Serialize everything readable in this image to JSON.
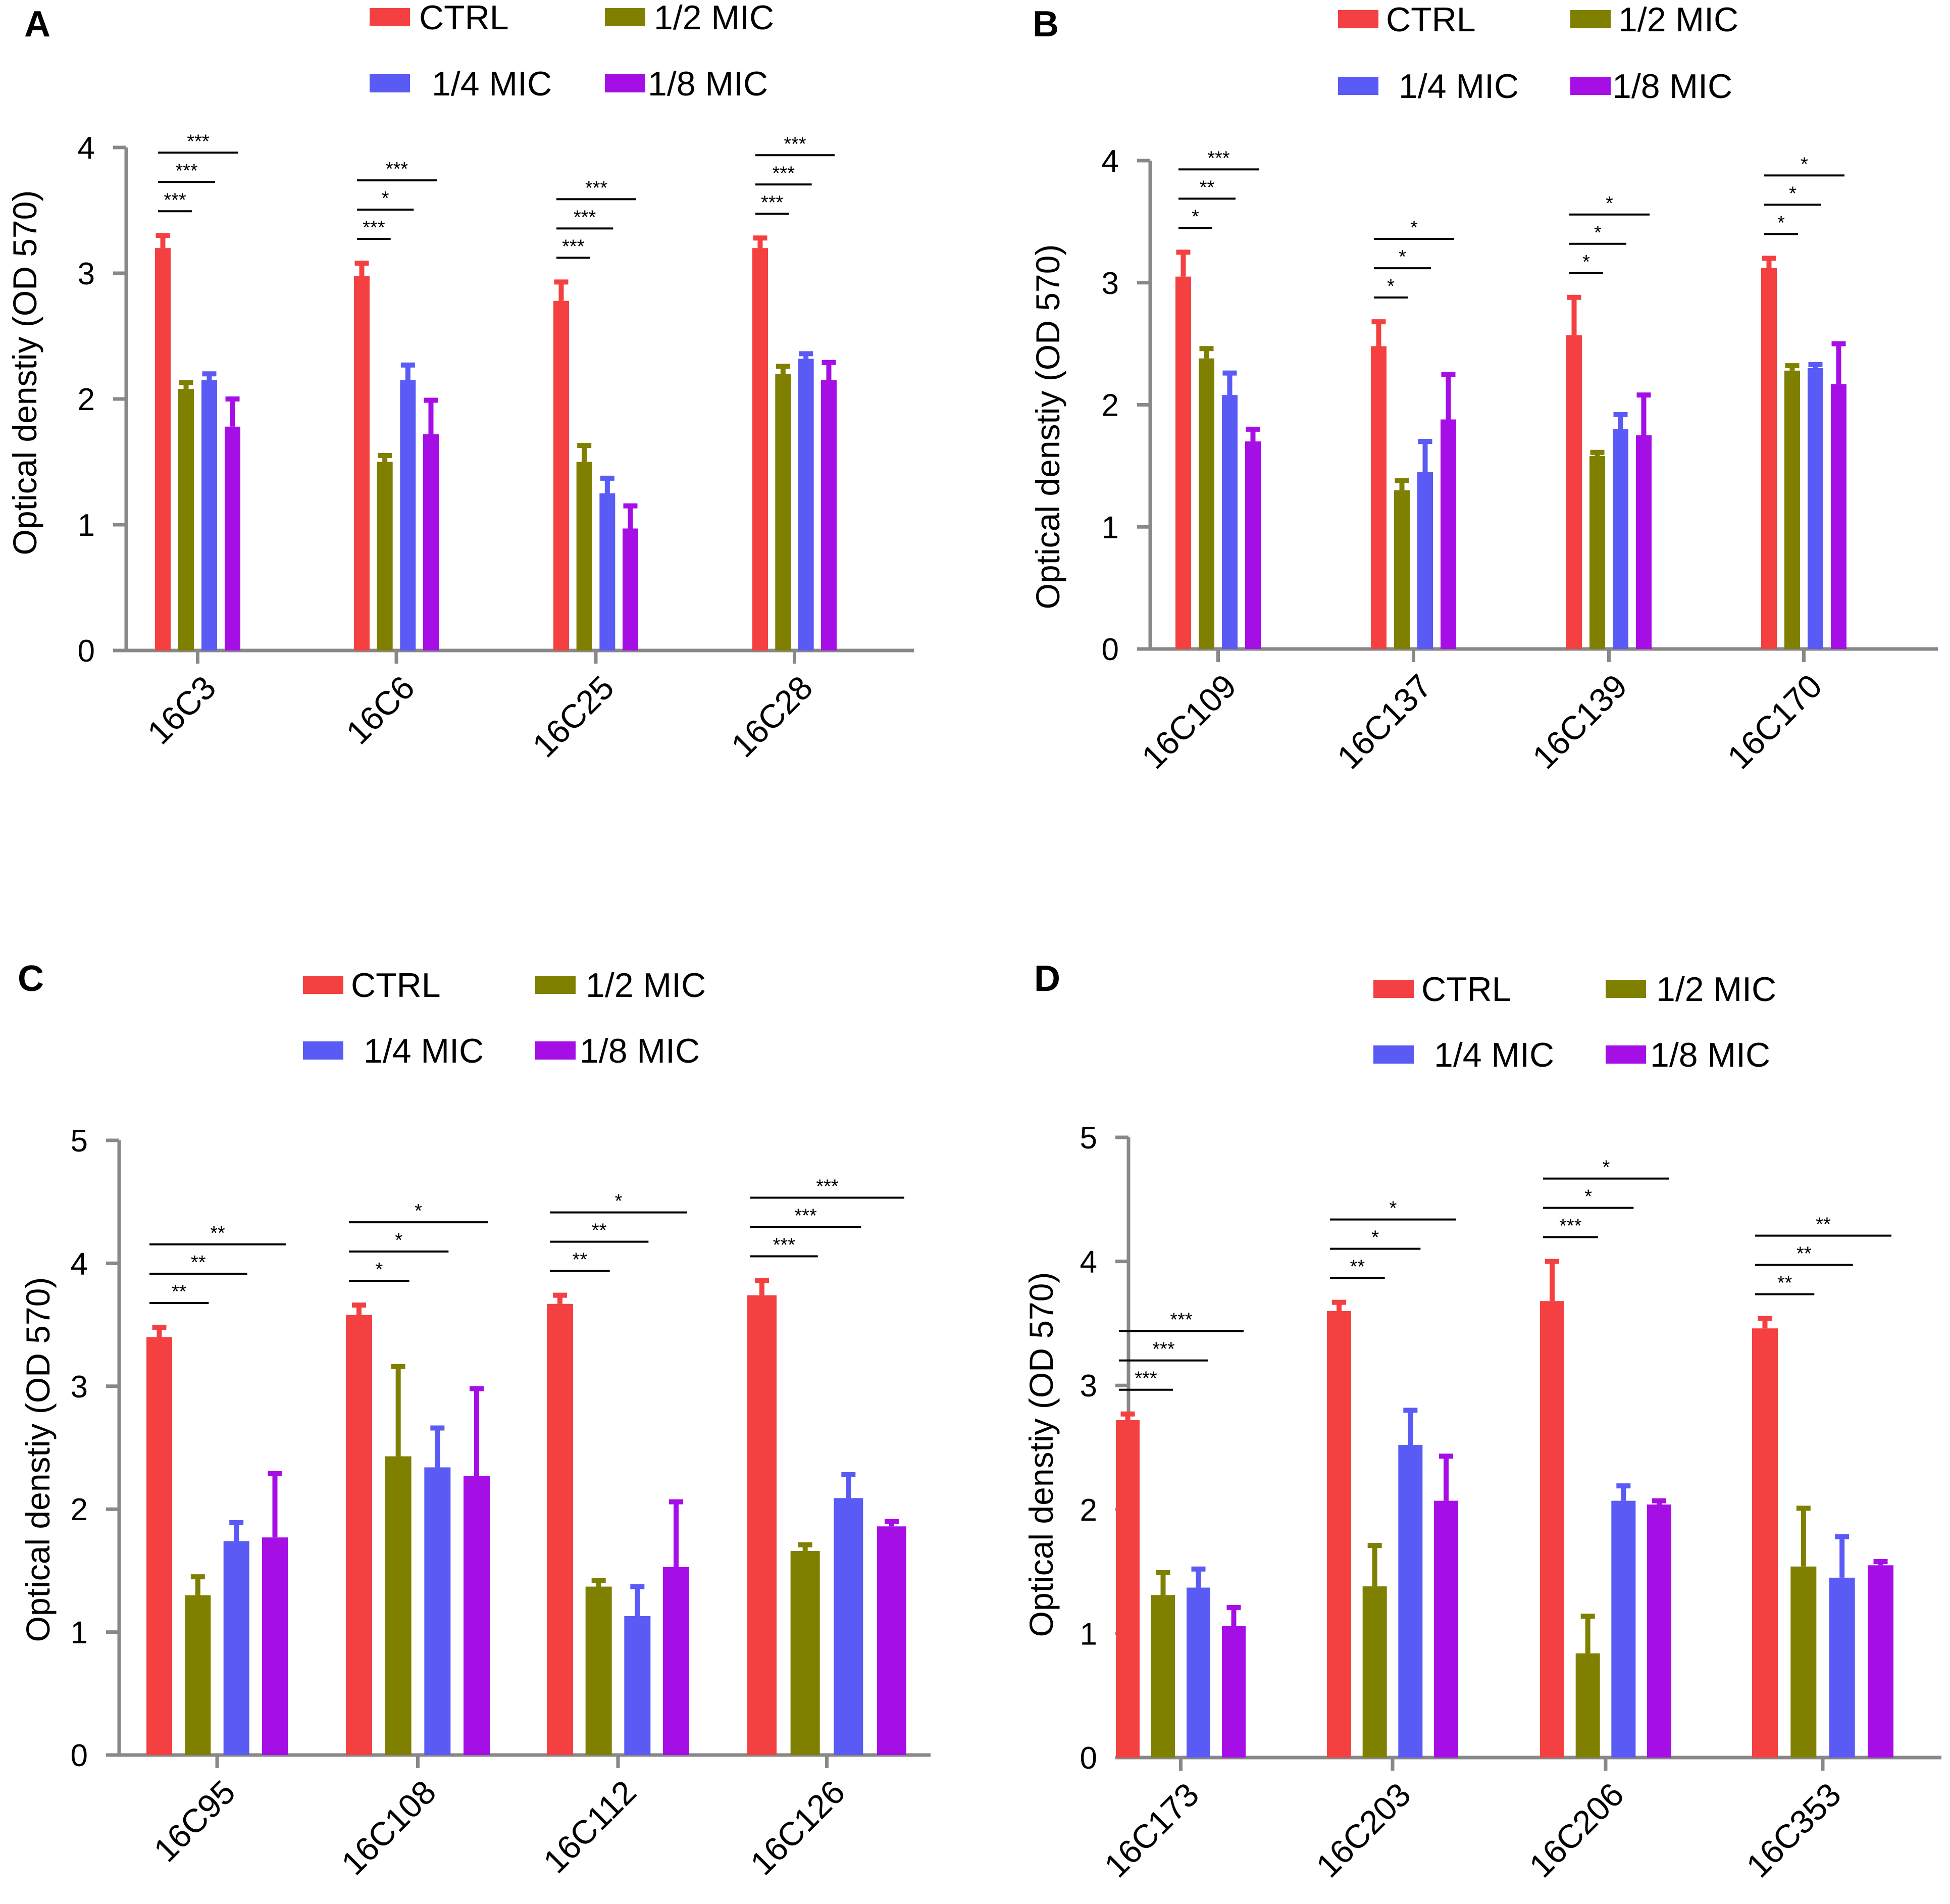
{
  "colors": {
    "CTRL": "#f44040",
    "1/2 MIC": "#7f7f00",
    "1/4 MIC": "#5a5af5",
    "1/8 MIC": "#a60ee6",
    "axis": "#888888"
  },
  "chart_data": [
    {
      "panel": "A",
      "type": "bar",
      "ylabel": "Optical denstiy (OD 570)",
      "ylim": [
        0,
        4
      ],
      "yticks": [
        0,
        1,
        2,
        3,
        4
      ],
      "legend": [
        "CTRL",
        "1/2 MIC",
        "1/4 MIC",
        "1/8 MIC"
      ],
      "categories": [
        "16C3",
        "16C6",
        "16C25",
        "16C28"
      ],
      "series": [
        {
          "name": "CTRL",
          "values": [
            3.2,
            2.98,
            2.78,
            3.2
          ],
          "errors": [
            0.1,
            0.1,
            0.15,
            0.08
          ]
        },
        {
          "name": "1/2 MIC",
          "values": [
            2.08,
            1.5,
            1.5,
            2.2
          ],
          "errors": [
            0.05,
            0.05,
            0.13,
            0.06
          ]
        },
        {
          "name": "1/4 MIC",
          "values": [
            2.15,
            2.15,
            1.25,
            2.32
          ],
          "errors": [
            0.05,
            0.12,
            0.12,
            0.04
          ]
        },
        {
          "name": "1/8 MIC",
          "values": [
            1.78,
            1.72,
            0.97,
            2.15
          ],
          "errors": [
            0.22,
            0.27,
            0.18,
            0.14
          ]
        }
      ],
      "significance": [
        [
          "***",
          "***",
          "***"
        ],
        [
          "***",
          "*",
          "***"
        ],
        [
          "***",
          "***",
          "***"
        ],
        [
          "***",
          "***",
          "***"
        ]
      ]
    },
    {
      "panel": "B",
      "type": "bar",
      "ylabel": "Optical denstiy (OD 570)",
      "ylim": [
        0,
        4
      ],
      "yticks": [
        0,
        1,
        2,
        3,
        4
      ],
      "legend": [
        "CTRL",
        "1/2 MIC",
        "1/4 MIC",
        "1/8 MIC"
      ],
      "categories": [
        "16C109",
        "16C137",
        "16C139",
        "16C170"
      ],
      "series": [
        {
          "name": "CTRL",
          "values": [
            3.05,
            2.48,
            2.57,
            3.12
          ],
          "errors": [
            0.2,
            0.2,
            0.31,
            0.08
          ]
        },
        {
          "name": "1/2 MIC",
          "values": [
            2.38,
            1.3,
            1.58,
            2.28
          ],
          "errors": [
            0.08,
            0.08,
            0.03,
            0.04
          ]
        },
        {
          "name": "1/4 MIC",
          "values": [
            2.08,
            1.45,
            1.8,
            2.3
          ],
          "errors": [
            0.18,
            0.25,
            0.12,
            0.03
          ]
        },
        {
          "name": "1/8 MIC",
          "values": [
            1.7,
            1.88,
            1.75,
            2.17
          ],
          "errors": [
            0.1,
            0.37,
            0.33,
            0.33
          ]
        }
      ],
      "significance": [
        [
          "*",
          "**",
          "***"
        ],
        [
          "*",
          "*",
          "*"
        ],
        [
          "*",
          "*",
          "*"
        ],
        [
          "*",
          "*",
          "*"
        ]
      ]
    },
    {
      "panel": "C",
      "type": "bar",
      "ylabel": "Optical denstiy (OD 570)",
      "ylim": [
        0,
        5
      ],
      "yticks": [
        0,
        1,
        2,
        3,
        4,
        5
      ],
      "legend": [
        "CTRL",
        "1/2 MIC",
        "1/4 MIC",
        "1/8 MIC"
      ],
      "categories": [
        "16C95",
        "16C108",
        "16C112",
        "16C126"
      ],
      "series": [
        {
          "name": "CTRL",
          "values": [
            3.4,
            3.58,
            3.67,
            3.74
          ],
          "errors": [
            0.08,
            0.08,
            0.07,
            0.12
          ]
        },
        {
          "name": "1/2 MIC",
          "values": [
            1.3,
            2.43,
            1.37,
            1.66
          ],
          "errors": [
            0.15,
            0.73,
            0.05,
            0.05
          ]
        },
        {
          "name": "1/4 MIC",
          "values": [
            1.74,
            2.34,
            1.13,
            2.09
          ],
          "errors": [
            0.15,
            0.32,
            0.24,
            0.19
          ]
        },
        {
          "name": "1/8 MIC",
          "values": [
            1.77,
            2.27,
            1.53,
            1.86
          ],
          "errors": [
            0.52,
            0.71,
            0.53,
            0.04
          ]
        }
      ],
      "significance": [
        [
          "**",
          "**",
          "**"
        ],
        [
          "*",
          "*",
          "*"
        ],
        [
          "**",
          "**",
          "*"
        ],
        [
          "***",
          "***",
          "***"
        ]
      ]
    },
    {
      "panel": "D",
      "type": "bar",
      "ylabel": "Optical denstiy (OD 570)",
      "ylim": [
        0,
        5
      ],
      "yticks": [
        0,
        1,
        2,
        3,
        4,
        5
      ],
      "legend": [
        "CTRL",
        "1/2 MIC",
        "1/4 MIC",
        "1/8 MIC"
      ],
      "categories": [
        "16C173",
        "16C203",
        "16C206",
        "16C353"
      ],
      "series": [
        {
          "name": "CTRL",
          "values": [
            2.72,
            3.6,
            3.68,
            3.46
          ],
          "errors": [
            0.05,
            0.07,
            0.32,
            0.08
          ]
        },
        {
          "name": "1/2 MIC",
          "values": [
            1.31,
            1.38,
            0.84,
            1.54
          ],
          "errors": [
            0.18,
            0.33,
            0.3,
            0.47
          ]
        },
        {
          "name": "1/4 MIC",
          "values": [
            1.37,
            2.52,
            2.07,
            1.45
          ],
          "errors": [
            0.15,
            0.28,
            0.12,
            0.33
          ]
        },
        {
          "name": "1/8 MIC",
          "values": [
            1.06,
            2.07,
            2.04,
            1.55
          ],
          "errors": [
            0.15,
            0.36,
            0.03,
            0.03
          ]
        }
      ],
      "significance": [
        [
          "***",
          "***",
          "***"
        ],
        [
          "**",
          "*",
          "*"
        ],
        [
          "***",
          "*",
          "*"
        ],
        [
          "**",
          "**",
          "**"
        ]
      ]
    }
  ]
}
